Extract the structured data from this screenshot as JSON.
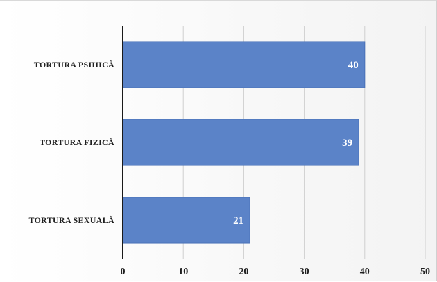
{
  "chart_data": {
    "type": "bar",
    "orientation": "horizontal",
    "categories": [
      "TORTURA PSIHICĂ",
      "TORTURA FIZICĂ",
      "TORTURA SEXUALĂ"
    ],
    "values": [
      40,
      39,
      21
    ],
    "data_labels": [
      "40",
      "39",
      "21"
    ],
    "xlim": [
      0,
      50
    ],
    "x_ticks": [
      0,
      10,
      20,
      30,
      40,
      50
    ],
    "x_tick_labels": [
      "0",
      "10",
      "20",
      "30",
      "40",
      "50"
    ],
    "grid": "vertical",
    "legend": "none",
    "bar_color": "#5b83c8",
    "bar_border_color": "#4a72b8",
    "grid_color": "#cfcfcf",
    "axis_color": "#1a1a1a"
  }
}
